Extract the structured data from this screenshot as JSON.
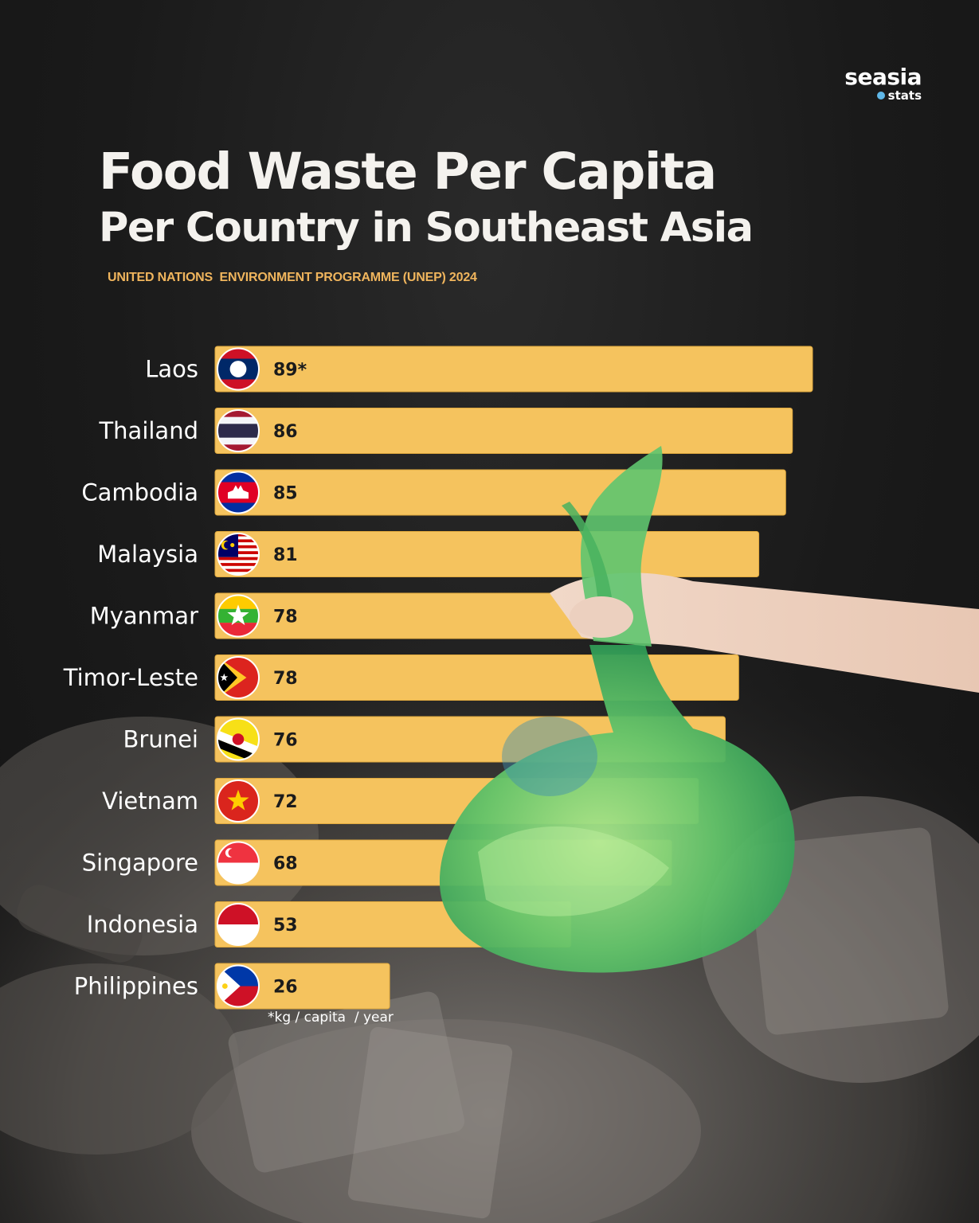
{
  "brand": {
    "name": "seasia",
    "sub": "stats"
  },
  "title_line1": "Food Waste Per Capita",
  "title_line2": "Per Country in Southeast Asia",
  "source": "UNITED NATIONS  ENVIRONMENT PROGRAMME (UNEP) 2024",
  "unit_note": "*kg / capita  / year",
  "colors": {
    "bar": "#f5c35e",
    "bar_edge": "#e0a93e",
    "label": "#ffffff",
    "value": "#1b1b1b",
    "source": "#f0b55d"
  },
  "chart_data": {
    "type": "bar",
    "orientation": "horizontal",
    "title": "Food Waste Per Capita Per Country in Southeast Asia",
    "categories": [
      "Laos",
      "Thailand",
      "Cambodia",
      "Malaysia",
      "Myanmar",
      "Timor-Leste",
      "Brunei",
      "Vietnam",
      "Singapore",
      "Indonesia",
      "Philippines"
    ],
    "values": [
      89,
      86,
      85,
      81,
      78,
      78,
      76,
      72,
      68,
      53,
      26
    ],
    "value_labels": [
      "89*",
      "86",
      "85",
      "81",
      "78",
      "78",
      "76",
      "72",
      "68",
      "53",
      "26"
    ],
    "flag_icons": [
      "laos-flag-icon",
      "thailand-flag-icon",
      "cambodia-flag-icon",
      "malaysia-flag-icon",
      "myanmar-flag-icon",
      "timor-leste-flag-icon",
      "brunei-flag-icon",
      "vietnam-flag-icon",
      "singapore-flag-icon",
      "indonesia-flag-icon",
      "philippines-flag-icon"
    ],
    "xlim": [
      0,
      89
    ],
    "grid": false,
    "legend": "none"
  }
}
